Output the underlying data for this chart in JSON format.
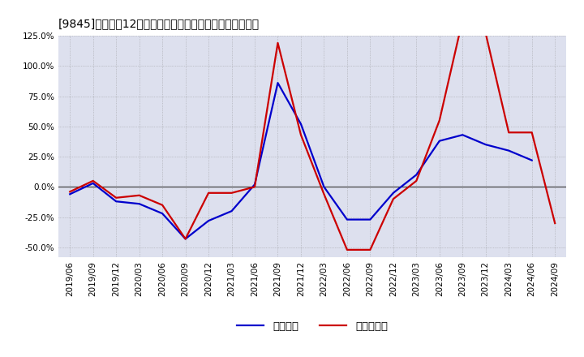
{
  "title": "[9845]　利益だ12か月移動合計の対前年同期増減率の推移",
  "legend_labels": [
    "経常利益",
    "当期純利益"
  ],
  "line_colors": [
    "#0000cc",
    "#cc0000"
  ],
  "background_color": "#ffffff",
  "plot_bg_color": "#dde0ee",
  "grid_color": "#888888",
  "ylim": [
    -0.58,
    0.16
  ],
  "yticks": [
    -0.5,
    -0.25,
    0.0,
    0.25,
    0.5,
    0.75,
    1.0,
    1.25
  ],
  "dates": [
    "2019/06",
    "2019/09",
    "2019/12",
    "2020/03",
    "2020/06",
    "2020/09",
    "2020/12",
    "2021/03",
    "2021/06",
    "2021/09",
    "2021/12",
    "2022/03",
    "2022/06",
    "2022/09",
    "2022/12",
    "2023/03",
    "2023/06",
    "2023/09",
    "2023/12",
    "2024/03",
    "2024/06",
    "2024/09"
  ],
  "keijo_rieki": [
    -0.06,
    0.03,
    -0.12,
    -0.14,
    -0.22,
    -0.43,
    -0.28,
    -0.2,
    0.02,
    0.86,
    0.52,
    0.0,
    -0.27,
    -0.27,
    -0.05,
    0.1,
    0.38,
    0.43,
    0.35,
    0.3,
    0.22,
    null
  ],
  "touki_jun_rieki": [
    -0.04,
    0.05,
    -0.09,
    -0.07,
    -0.15,
    -0.43,
    -0.05,
    -0.05,
    0.0,
    1.19,
    0.43,
    -0.06,
    -0.52,
    -0.52,
    -0.1,
    0.05,
    0.55,
    1.38,
    1.27,
    0.45,
    0.45,
    -0.3
  ],
  "title_fontsize": 10.5,
  "tick_fontsize": 7.5,
  "legend_fontsize": 9.5
}
